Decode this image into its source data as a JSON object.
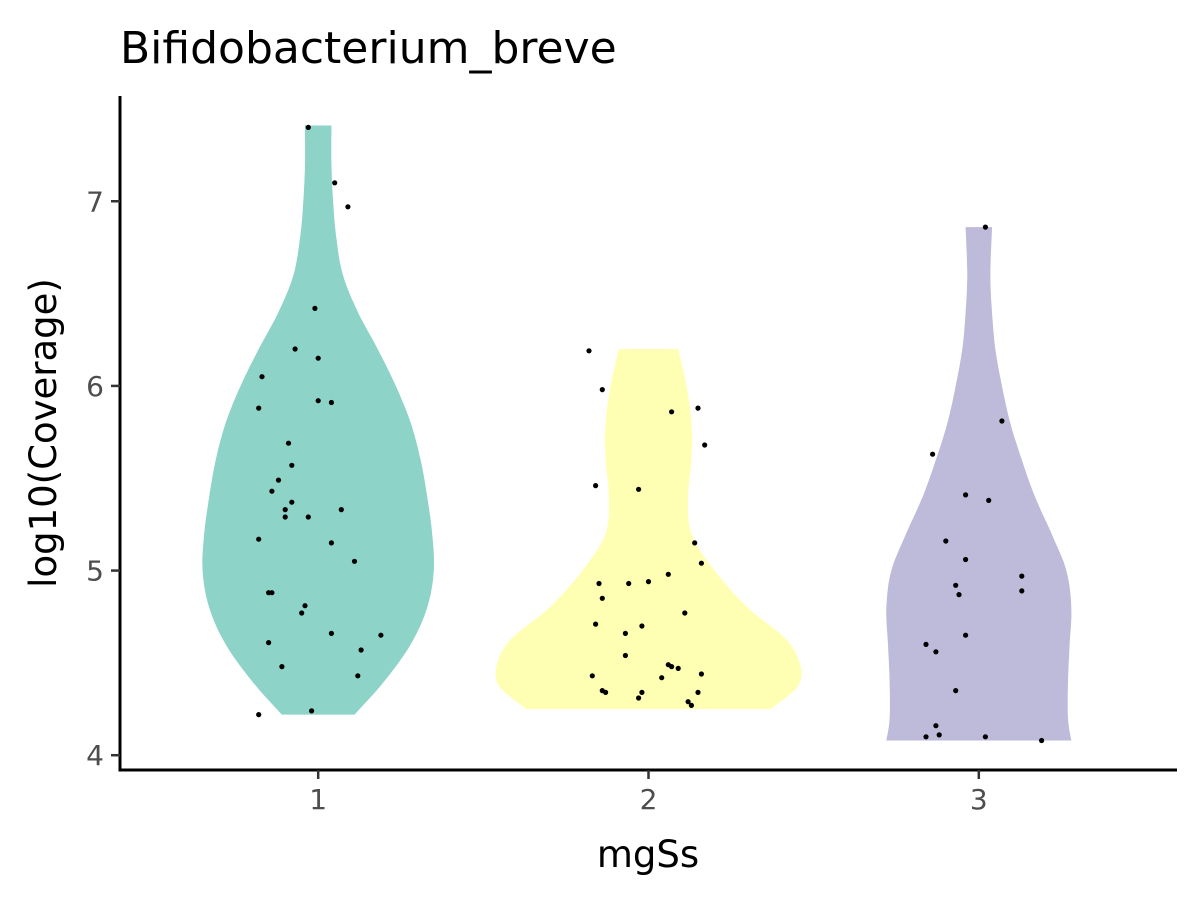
{
  "chart_data": {
    "type": "violin",
    "title": "Bifidobacterium_breve",
    "xlabel": "mgSs",
    "ylabel": "log10(Coverage)",
    "categories": [
      "1",
      "2",
      "3"
    ],
    "ylim": [
      3.92,
      7.57
    ],
    "yticks": [
      4,
      5,
      6,
      7
    ],
    "grid": false,
    "legend": "none",
    "colors": [
      "#8DD3C7",
      "#FFFFB3",
      "#BEBADA"
    ],
    "violins": [
      {
        "category": "1",
        "profile": [
          [
            4.22,
            0.11
          ],
          [
            4.4,
            0.2
          ],
          [
            4.6,
            0.28
          ],
          [
            4.8,
            0.33
          ],
          [
            5.0,
            0.35
          ],
          [
            5.2,
            0.345
          ],
          [
            5.4,
            0.33
          ],
          [
            5.6,
            0.31
          ],
          [
            5.8,
            0.28
          ],
          [
            6.0,
            0.235
          ],
          [
            6.2,
            0.18
          ],
          [
            6.4,
            0.12
          ],
          [
            6.6,
            0.075
          ],
          [
            6.8,
            0.055
          ],
          [
            7.0,
            0.045
          ],
          [
            7.2,
            0.04
          ],
          [
            7.41,
            0.04
          ]
        ],
        "points": [
          [
            -0.18,
            4.22
          ],
          [
            -0.02,
            4.24
          ],
          [
            -0.11,
            4.48
          ],
          [
            0.12,
            4.43
          ],
          [
            0.13,
            4.57
          ],
          [
            -0.15,
            4.61
          ],
          [
            0.19,
            4.65
          ],
          [
            0.04,
            4.66
          ],
          [
            -0.05,
            4.77
          ],
          [
            -0.04,
            4.81
          ],
          [
            -0.14,
            4.88
          ],
          [
            -0.15,
            4.88
          ],
          [
            0.11,
            5.05
          ],
          [
            0.04,
            5.15
          ],
          [
            -0.18,
            5.17
          ],
          [
            -0.1,
            5.29
          ],
          [
            -0.03,
            5.29
          ],
          [
            -0.1,
            5.33
          ],
          [
            0.07,
            5.33
          ],
          [
            -0.08,
            5.37
          ],
          [
            -0.14,
            5.43
          ],
          [
            -0.12,
            5.49
          ],
          [
            -0.08,
            5.57
          ],
          [
            -0.09,
            5.69
          ],
          [
            0.04,
            5.91
          ],
          [
            0.0,
            5.92
          ],
          [
            -0.18,
            5.88
          ],
          [
            -0.17,
            6.05
          ],
          [
            0.0,
            6.15
          ],
          [
            -0.07,
            6.2
          ],
          [
            -0.01,
            6.42
          ],
          [
            0.09,
            6.97
          ],
          [
            0.05,
            7.1
          ],
          [
            -0.03,
            7.4
          ]
        ]
      },
      {
        "category": "2",
        "profile": [
          [
            4.25,
            0.37
          ],
          [
            4.4,
            0.46
          ],
          [
            4.6,
            0.43
          ],
          [
            4.8,
            0.3
          ],
          [
            5.0,
            0.2
          ],
          [
            5.2,
            0.13
          ],
          [
            5.4,
            0.12
          ],
          [
            5.6,
            0.13
          ],
          [
            5.8,
            0.13
          ],
          [
            6.0,
            0.115
          ],
          [
            6.2,
            0.09
          ]
        ],
        "points": [
          [
            0.13,
            4.27
          ],
          [
            0.12,
            4.29
          ],
          [
            -0.13,
            4.34
          ],
          [
            -0.14,
            4.35
          ],
          [
            -0.02,
            4.34
          ],
          [
            0.15,
            4.34
          ],
          [
            -0.03,
            4.31
          ],
          [
            0.04,
            4.42
          ],
          [
            0.07,
            4.48
          ],
          [
            0.09,
            4.47
          ],
          [
            0.06,
            4.49
          ],
          [
            -0.17,
            4.43
          ],
          [
            0.16,
            4.44
          ],
          [
            -0.07,
            4.54
          ],
          [
            -0.07,
            4.66
          ],
          [
            -0.16,
            4.71
          ],
          [
            -0.02,
            4.7
          ],
          [
            0.11,
            4.77
          ],
          [
            -0.14,
            4.85
          ],
          [
            -0.15,
            4.93
          ],
          [
            -0.06,
            4.93
          ],
          [
            0.0,
            4.94
          ],
          [
            0.06,
            4.98
          ],
          [
            0.16,
            5.04
          ],
          [
            0.14,
            5.15
          ],
          [
            -0.03,
            5.44
          ],
          [
            -0.16,
            5.46
          ],
          [
            0.17,
            5.68
          ],
          [
            0.07,
            5.86
          ],
          [
            0.15,
            5.88
          ],
          [
            -0.14,
            5.98
          ],
          [
            -0.18,
            6.19
          ]
        ]
      },
      {
        "category": "3",
        "profile": [
          [
            4.08,
            0.28
          ],
          [
            4.2,
            0.27
          ],
          [
            4.4,
            0.27
          ],
          [
            4.6,
            0.275
          ],
          [
            4.8,
            0.28
          ],
          [
            5.0,
            0.265
          ],
          [
            5.2,
            0.22
          ],
          [
            5.4,
            0.17
          ],
          [
            5.6,
            0.13
          ],
          [
            5.8,
            0.095
          ],
          [
            6.0,
            0.07
          ],
          [
            6.2,
            0.05
          ],
          [
            6.4,
            0.04
          ],
          [
            6.6,
            0.035
          ],
          [
            6.86,
            0.04
          ]
        ],
        "points": [
          [
            0.19,
            4.08
          ],
          [
            0.02,
            4.1
          ],
          [
            -0.16,
            4.1
          ],
          [
            -0.12,
            4.11
          ],
          [
            -0.13,
            4.16
          ],
          [
            -0.07,
            4.35
          ],
          [
            -0.13,
            4.56
          ],
          [
            -0.16,
            4.6
          ],
          [
            -0.04,
            4.65
          ],
          [
            -0.06,
            4.87
          ],
          [
            0.13,
            4.89
          ],
          [
            -0.07,
            4.92
          ],
          [
            0.13,
            4.97
          ],
          [
            -0.04,
            5.06
          ],
          [
            -0.1,
            5.16
          ],
          [
            0.03,
            5.38
          ],
          [
            -0.04,
            5.41
          ],
          [
            -0.14,
            5.63
          ],
          [
            0.07,
            5.81
          ],
          [
            0.02,
            6.86
          ]
        ]
      }
    ]
  }
}
